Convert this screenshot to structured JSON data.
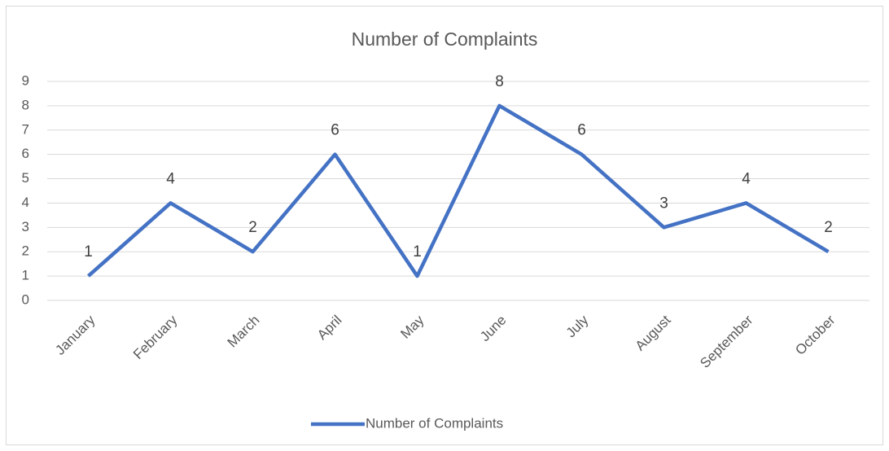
{
  "chart_data": {
    "type": "line",
    "title": "Number of Complaints",
    "categories": [
      "January",
      "February",
      "March",
      "April",
      "May",
      "June",
      "July",
      "August",
      "September",
      "October"
    ],
    "series": [
      {
        "name": "Number of Complaints",
        "color": "#4472c4",
        "values": [
          1,
          4,
          2,
          6,
          1,
          8,
          6,
          3,
          4,
          2
        ]
      }
    ],
    "ylim": [
      0,
      9
    ],
    "yticks": [
      0,
      1,
      2,
      3,
      4,
      5,
      6,
      7,
      8,
      9
    ],
    "grid": true,
    "legend": "bottom",
    "data_labels": true
  }
}
